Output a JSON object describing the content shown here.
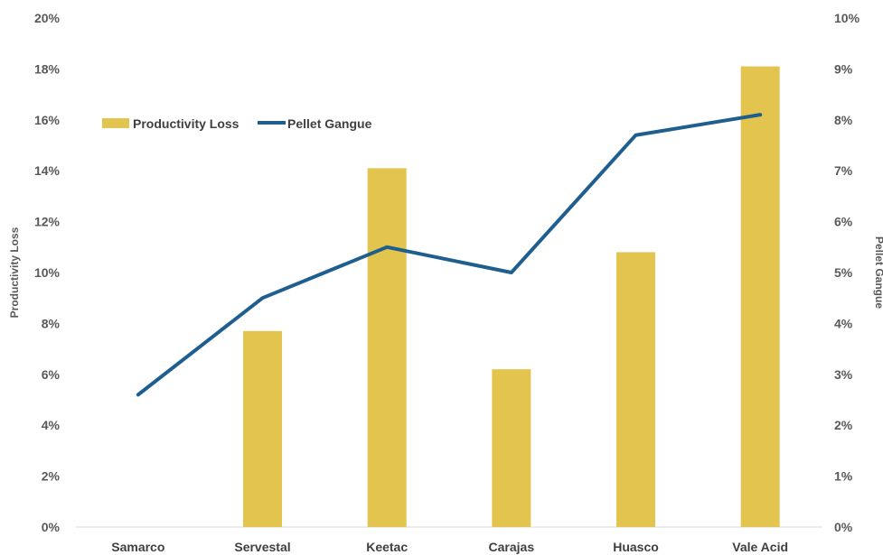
{
  "chart_data": {
    "type": "bar",
    "categories": [
      "Samarco",
      "Servestal",
      "Keetac",
      "Carajas",
      "Huasco",
      "Vale Acid"
    ],
    "series": [
      {
        "name": "Productivity Loss",
        "type": "bar",
        "axis": "left",
        "color": "#E3C44E",
        "values": [
          0,
          7.7,
          14.1,
          6.2,
          10.8,
          18.1
        ]
      },
      {
        "name": "Pellet Gangue",
        "type": "line",
        "axis": "right",
        "color": "#1F5F8F",
        "values": [
          2.6,
          4.5,
          5.5,
          5.0,
          7.7,
          8.1
        ]
      }
    ],
    "ylabel": "Productivity Loss",
    "y2label": "Pellet Gangue",
    "ylim": [
      0,
      20
    ],
    "y2lim": [
      0,
      10
    ],
    "yticks": [
      "0%",
      "2%",
      "4%",
      "6%",
      "8%",
      "10%",
      "12%",
      "14%",
      "16%",
      "18%",
      "20%"
    ],
    "y2ticks": [
      "0%",
      "1%",
      "2%",
      "3%",
      "4%",
      "5%",
      "6%",
      "7%",
      "8%",
      "9%",
      "10%"
    ],
    "legend": {
      "position": "top-left",
      "entries": [
        "Productivity Loss",
        "Pellet Gangue"
      ]
    },
    "grid": false
  }
}
